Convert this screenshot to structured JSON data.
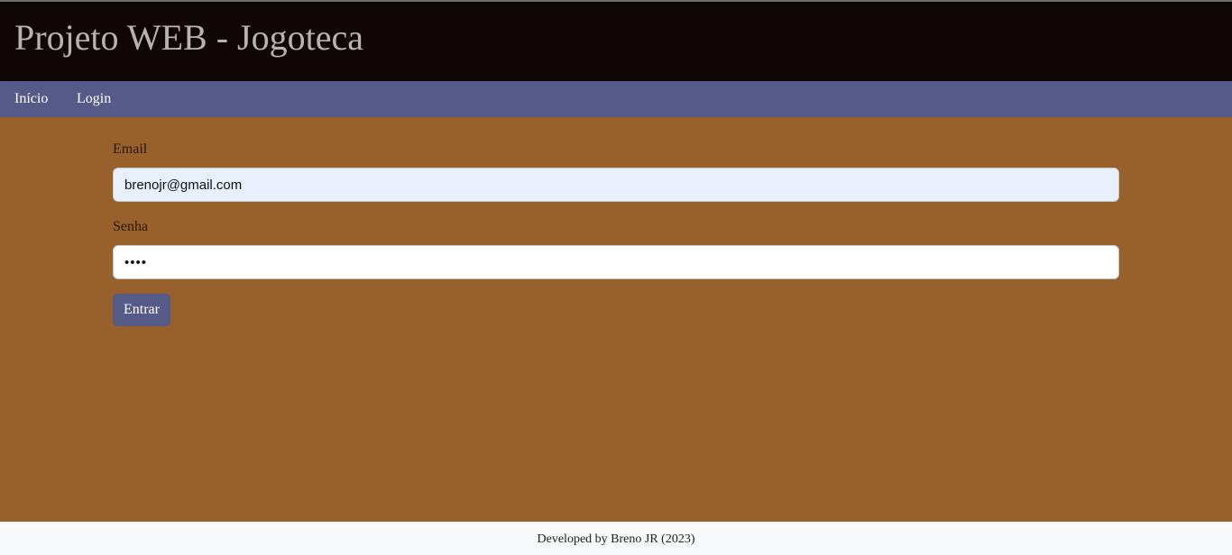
{
  "header": {
    "title": "Projeto WEB - Jogoteca"
  },
  "nav": {
    "items": [
      {
        "label": "Início"
      },
      {
        "label": "Login"
      }
    ]
  },
  "form": {
    "email": {
      "label": "Email",
      "value": "brenojr@gmail.com"
    },
    "senha": {
      "label": "Senha",
      "value": "••••"
    },
    "submit_label": "Entrar"
  },
  "footer": {
    "text": "Developed by Breno JR (2023)"
  },
  "colors": {
    "header_bg": "#0f0705",
    "nav_bg": "#565a88",
    "page_bg": "#98602a",
    "button_bg": "#565a88",
    "footer_bg": "#f7f8fa"
  }
}
